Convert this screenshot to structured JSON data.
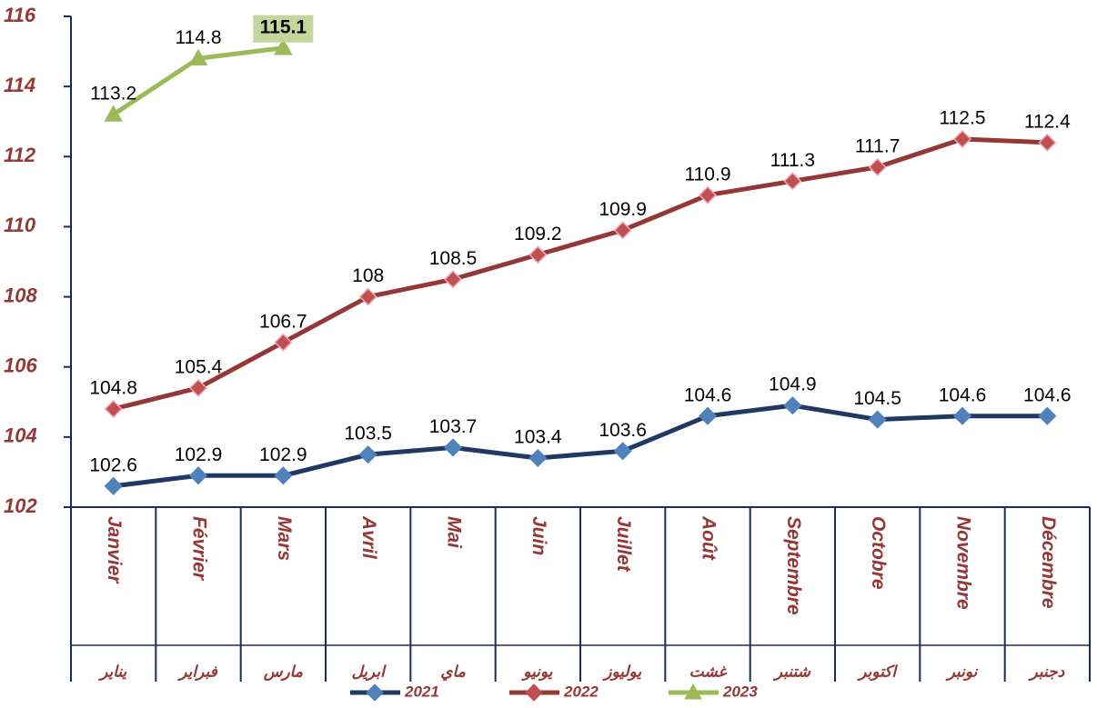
{
  "chart_data": {
    "type": "line",
    "categories": [
      "Janvier",
      "Février",
      "Mars",
      "Avril",
      "Mai",
      "Juin",
      "Juillet",
      "Août",
      "Septembre",
      "Octobre",
      "Novembre",
      "Décembre"
    ],
    "categories_ar": [
      "يناير",
      "فبراير",
      "مارس",
      "ابريل",
      "ماي",
      "يونيو",
      "يوليوز",
      "غشت",
      "شتنبر",
      "اكتوبر",
      "نونبر",
      "دجنبر"
    ],
    "series": [
      {
        "name": "2021",
        "color": "#1f3864",
        "marker_color": "#4f81bd",
        "marker": "diamond",
        "values": [
          102.6,
          102.9,
          102.9,
          103.5,
          103.7,
          103.4,
          103.6,
          104.6,
          104.9,
          104.5,
          104.6,
          104.6
        ]
      },
      {
        "name": "2022",
        "color": "#953735",
        "marker_color": "#c0504d",
        "marker": "diamond",
        "values": [
          104.8,
          105.4,
          106.7,
          108,
          108.5,
          109.2,
          109.9,
          110.9,
          111.3,
          111.7,
          112.5,
          112.4
        ]
      },
      {
        "name": "2023",
        "color": "#9bbb59",
        "marker_color": "#9bbb59",
        "marker": "triangle",
        "highlight_last": true,
        "values": [
          113.2,
          114.8,
          115.1,
          null,
          null,
          null,
          null,
          null,
          null,
          null,
          null,
          null
        ]
      }
    ],
    "ylim": [
      102,
      116
    ],
    "yticks": [
      102,
      104,
      106,
      108,
      110,
      112,
      114,
      116
    ]
  }
}
